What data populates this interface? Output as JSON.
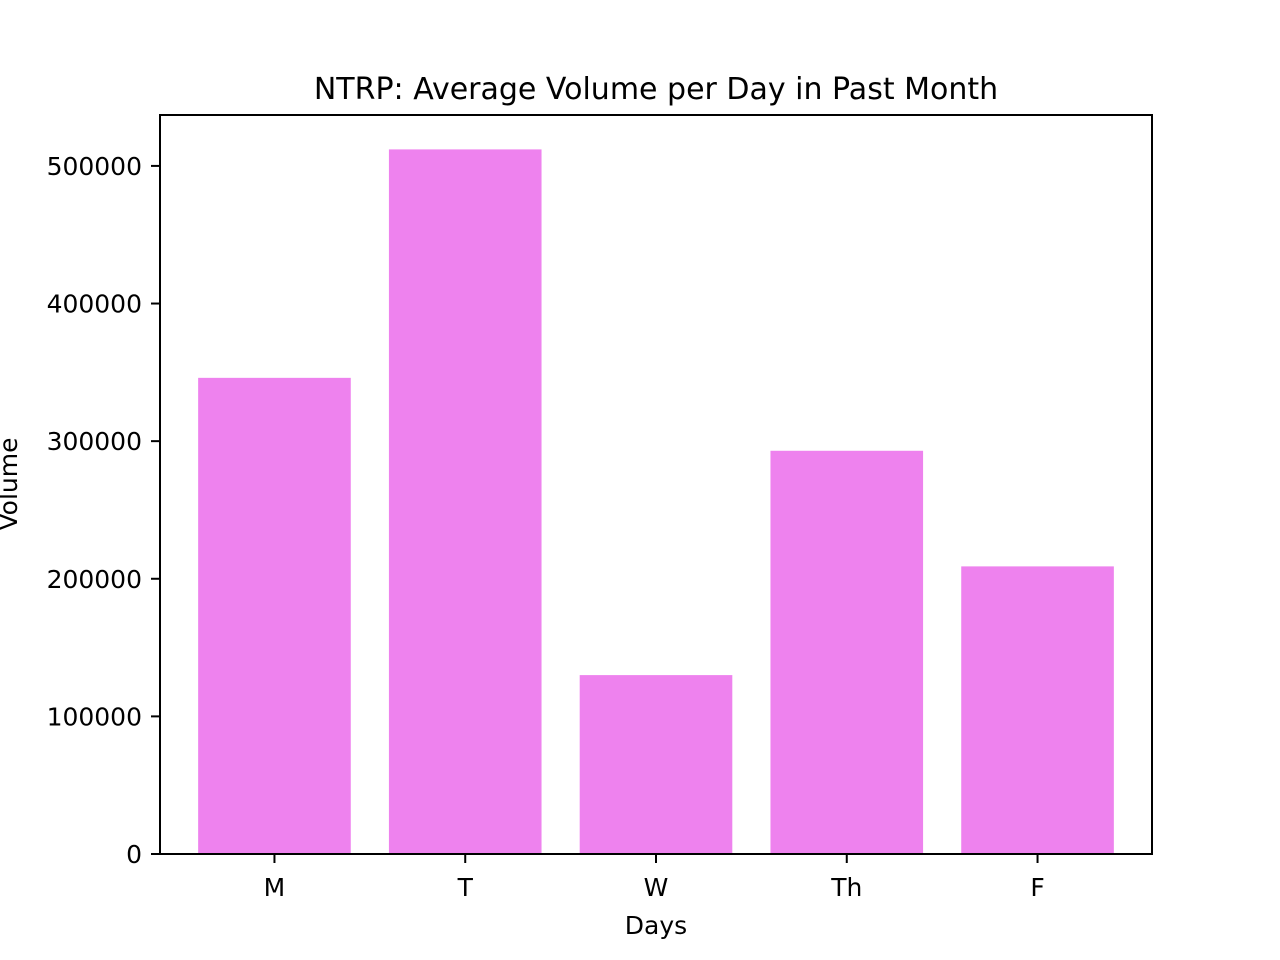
{
  "chart_data": {
    "type": "bar",
    "title": "NTRP: Average Volume per Day in Past Month",
    "xlabel": "Days",
    "ylabel": "Volume",
    "categories": [
      "M",
      "T",
      "W",
      "Th",
      "F"
    ],
    "values": [
      346000,
      512000,
      130000,
      293000,
      209000
    ],
    "ylim": [
      0,
      537000
    ],
    "yticks": [
      0,
      100000,
      200000,
      300000,
      400000,
      500000
    ],
    "ytick_labels": [
      "0",
      "100000",
      "200000",
      "300000",
      "400000",
      "500000"
    ],
    "bar_color": "#ee82ee",
    "grid": false,
    "legend": "none"
  }
}
